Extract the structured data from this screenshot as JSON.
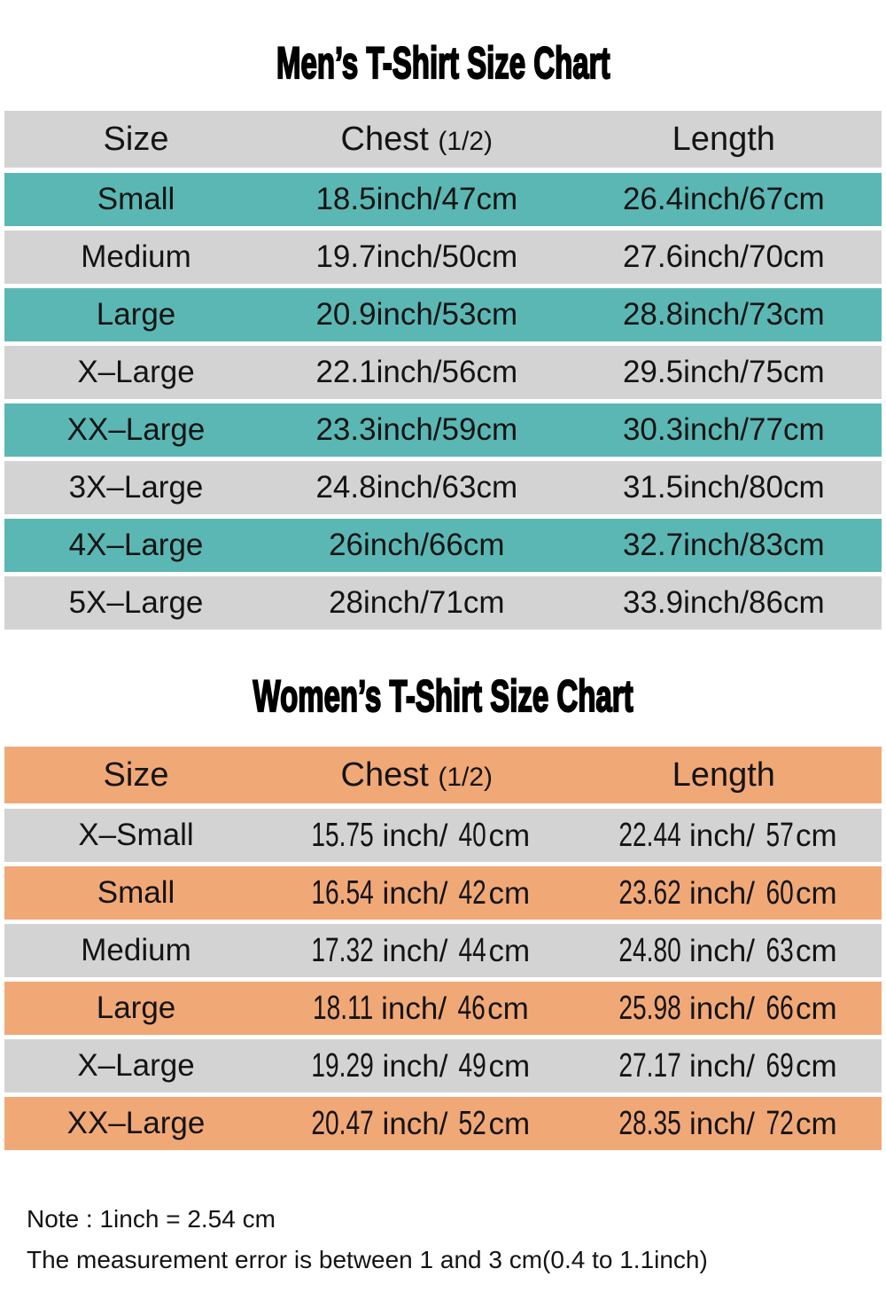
{
  "page": {
    "background": "#ffffff",
    "text_color": "#141414"
  },
  "chart_data": [
    {
      "type": "table",
      "title": "Men’s T-Shirt Size Chart",
      "columns": [
        "Size",
        "Chest (1/2)",
        "Length"
      ],
      "rows": [
        [
          "Small",
          "18.5inch/47cm",
          "26.4inch/67cm"
        ],
        [
          "Medium",
          "19.7inch/50cm",
          "27.6inch/70cm"
        ],
        [
          "Large",
          "20.9inch/53cm",
          "28.8inch/73cm"
        ],
        [
          "X–Large",
          "22.1inch/56cm",
          "29.5inch/75cm"
        ],
        [
          "XX–Large",
          "23.3inch/59cm",
          "30.3inch/77cm"
        ],
        [
          "3X–Large",
          "24.8inch/63cm",
          "31.5inch/80cm"
        ],
        [
          "4X–Large",
          "26inch/66cm",
          "32.7inch/83cm"
        ],
        [
          "5X–Large",
          "28inch/71cm",
          "33.9inch/86cm"
        ]
      ],
      "header_color": "#d3d3d3",
      "stripe_color": "#5bb7b4",
      "alt_color": "#d3d3d3",
      "stripe_parity": 0,
      "condensed_numbers": false,
      "legend_position": "none",
      "grid": false
    },
    {
      "type": "table",
      "title": "Women’s T-Shirt Size Chart",
      "columns": [
        "Size",
        "Chest (1/2)",
        "Length"
      ],
      "rows": [
        [
          "X–Small",
          "15.75inch/ 40cm",
          "22.44inch/ 57cm"
        ],
        [
          "Small",
          "16.54inch/ 42cm",
          "23.62inch/ 60cm"
        ],
        [
          "Medium",
          "17.32inch/ 44cm",
          "24.80inch/ 63cm"
        ],
        [
          "Large",
          "18.11inch/ 46cm",
          "25.98inch/ 66cm"
        ],
        [
          "X–Large",
          "19.29inch/ 49cm",
          "27.17inch/ 69cm"
        ],
        [
          "XX–Large",
          "20.47inch/ 52cm",
          "28.35inch/ 72cm"
        ]
      ],
      "header_color": "#f1a877",
      "stripe_color": "#f1a877",
      "alt_color": "#d3d3d3",
      "stripe_parity": 1,
      "condensed_numbers": true,
      "legend_position": "none",
      "grid": false
    }
  ],
  "note": {
    "line1": "Note : 1inch = 2.54 cm",
    "line2": "The measurement error is between 1 and 3 cm(0.4 to 1.1inch)"
  }
}
